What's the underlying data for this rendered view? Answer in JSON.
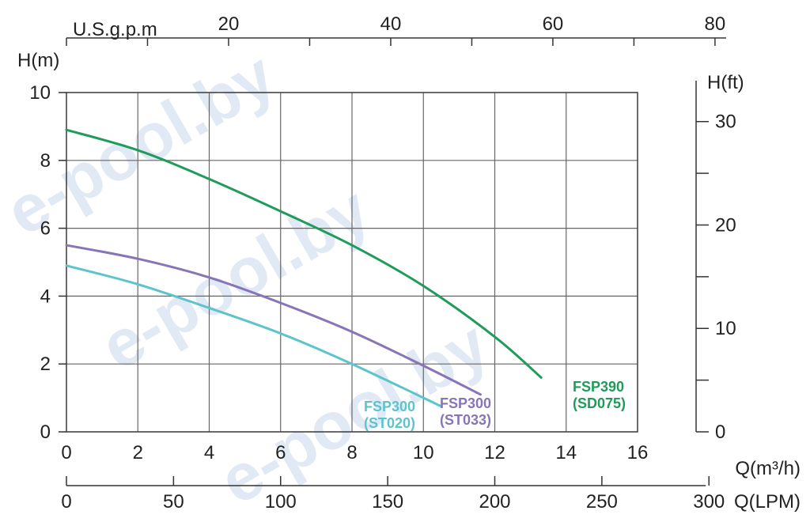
{
  "watermark": "e-pool.by",
  "chart_data": {
    "type": "line",
    "xlabel": "Q(m³/h)",
    "ylabel": "H(m)",
    "xlim": [
      0,
      16
    ],
    "ylim": [
      0,
      10
    ],
    "x_ticks": [
      0,
      2,
      4,
      6,
      8,
      10,
      12,
      14,
      16
    ],
    "y_ticks": [
      0,
      2,
      4,
      6,
      8,
      10
    ],
    "grid": true,
    "secondary_axes": {
      "right": {
        "label": "H(ft)",
        "ticks": [
          0,
          10,
          20,
          30
        ]
      },
      "top": {
        "label": "U.S.g.p.m",
        "ticks": [
          20,
          40,
          60,
          80
        ]
      },
      "bottom2": {
        "label": "Q(LPM)",
        "ticks": [
          0,
          50,
          100,
          150,
          200,
          250,
          300
        ]
      }
    },
    "series": [
      {
        "name": "FSP300 (ST020)",
        "label_lines": [
          "FSP300",
          "(ST020)"
        ],
        "color": "#5cc4cc",
        "x": [
          0,
          2,
          4,
          6,
          8,
          10.5
        ],
        "y": [
          4.9,
          4.35,
          3.65,
          2.9,
          2.0,
          0.75
        ]
      },
      {
        "name": "FSP300 (ST033)",
        "label_lines": [
          "FSP300",
          "(ST033)"
        ],
        "color": "#8775b8",
        "x": [
          0,
          2,
          4,
          6,
          8,
          10,
          11.6
        ],
        "y": [
          5.5,
          5.1,
          4.55,
          3.8,
          2.95,
          1.95,
          1.1
        ]
      },
      {
        "name": "FSP390 (SD075)",
        "label_lines": [
          "FSP390",
          "(SD075)"
        ],
        "color": "#1f9b5a",
        "x": [
          0,
          2,
          4,
          6,
          8,
          10,
          12,
          13.3
        ],
        "y": [
          8.9,
          8.3,
          7.45,
          6.5,
          5.5,
          4.3,
          2.8,
          1.6
        ]
      }
    ]
  }
}
